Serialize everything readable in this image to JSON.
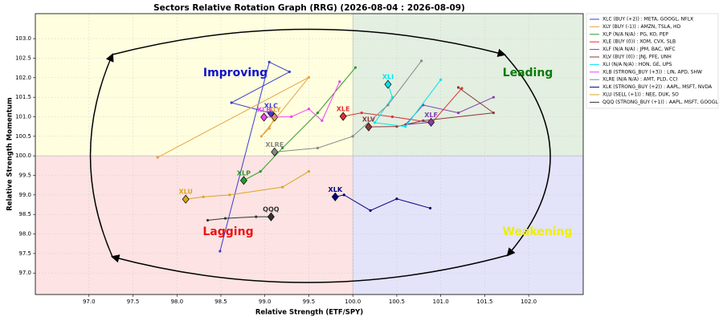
{
  "chart_data": {
    "type": "rrg",
    "title": "Sectors Relative Rotation Graph (RRG) (2026-08-04 : 2026-08-09)",
    "x_label": "Relative Strength (ETF/SPY)",
    "y_label": "Relative Strength Momentum",
    "xlim": [
      96.39,
      102.62
    ],
    "ylim": [
      96.45,
      103.64
    ],
    "center": [
      100,
      100
    ],
    "grid": true,
    "xticks": [
      {
        "value": 97,
        "label": "97.0"
      },
      {
        "value": 97.5,
        "label": "97.5"
      },
      {
        "value": 98,
        "label": "98.0"
      },
      {
        "value": 98.5,
        "label": "98.5"
      },
      {
        "value": 99,
        "label": "99.0"
      },
      {
        "value": 99.5,
        "label": "99.5"
      },
      {
        "value": 100,
        "label": "100.0"
      },
      {
        "value": 100.5,
        "label": "100.5"
      },
      {
        "value": 101,
        "label": "101.0"
      },
      {
        "value": 101.5,
        "label": "101.5"
      },
      {
        "value": 102,
        "label": "102.0"
      }
    ],
    "yticks": [
      {
        "value": 97,
        "label": "97.0"
      },
      {
        "value": 97.5,
        "label": "97.5"
      },
      {
        "value": 98,
        "label": "98.0"
      },
      {
        "value": 98.5,
        "label": "98.5"
      },
      {
        "value": 99,
        "label": "99.0"
      },
      {
        "value": 99.5,
        "label": "99.5"
      },
      {
        "value": 100,
        "label": "100.0"
      },
      {
        "value": 100.5,
        "label": "100.5"
      },
      {
        "value": 101,
        "label": "101.0"
      },
      {
        "value": 101.5,
        "label": "101.5"
      },
      {
        "value": 102,
        "label": "102.0"
      },
      {
        "value": 102.5,
        "label": "102.5"
      },
      {
        "value": 103,
        "label": "103.0"
      }
    ],
    "quadrants": [
      {
        "name": "Improving",
        "color": "#1010cc",
        "bg": "#ffffe0"
      },
      {
        "name": "Leading",
        "color": "#0a7a0a",
        "bg": "#e3efe0"
      },
      {
        "name": "Weakening",
        "color": "#eeee00",
        "bg": "#e3e3fa"
      },
      {
        "name": "Lagging",
        "color": "#ee1010",
        "bg": "#fde3e3"
      }
    ],
    "legend": "upper right",
    "series": [
      {
        "name": "XLC (BUY (+2)) : META, GOOGL, NFLX",
        "label": "XLC",
        "color": "#3c3ccc",
        "x": [
          98.49,
          99.05,
          99.28,
          98.62,
          99.07
        ],
        "y": [
          97.56,
          102.4,
          102.15,
          101.36,
          101.09
        ]
      },
      {
        "name": "XLY (BUY (-1)) : AMZN, TSLA, HD",
        "label": "XLY",
        "color": "#e8a33d",
        "x": [
          97.78,
          99.5,
          98.96,
          99.05,
          99.11
        ],
        "y": [
          99.96,
          102.01,
          100.5,
          100.7,
          100.99
        ]
      },
      {
        "name": "XLP (N/A N/A) : PG, KO, PEP",
        "label": "XLP",
        "color": "#2a9a2a",
        "x": [
          100.03,
          99.6,
          99.2,
          98.95,
          98.76
        ],
        "y": [
          102.26,
          101.1,
          100.2,
          99.6,
          99.37
        ]
      },
      {
        "name": "XLE (BUY (0)) : XOM, CVX, SLB",
        "label": "XLE",
        "color": "#e03030",
        "x": [
          101.24,
          100.9,
          100.45,
          100.1,
          99.89
        ],
        "y": [
          101.73,
          100.85,
          101.0,
          101.1,
          101.01
        ]
      },
      {
        "name": "XLF (N/A N/A) : JPM, BAC, WFC",
        "label": "XLF",
        "color": "#8040b0",
        "x": [
          101.6,
          101.2,
          100.8,
          100.6,
          100.89
        ],
        "y": [
          101.5,
          101.1,
          101.3,
          100.8,
          100.86
        ]
      },
      {
        "name": "XLV (BUY (0)) : JNJ, PFE, UNH",
        "label": "XLV",
        "color": "#8b3a3a",
        "x": [
          101.2,
          101.6,
          100.8,
          100.5,
          100.18
        ],
        "y": [
          101.75,
          101.1,
          100.9,
          100.75,
          100.74
        ]
      },
      {
        "name": "XLI (N/A N/A) : HON, GE, UPS",
        "label": "XLI",
        "color": "#00e5ee",
        "x": [
          101.0,
          100.6,
          100.25,
          100.45,
          100.4
        ],
        "y": [
          101.95,
          100.75,
          100.85,
          101.5,
          101.83
        ]
      },
      {
        "name": "XLB (STRONG_BUY (+3)) : LIN, APD, SHW",
        "label": "XLB",
        "color": "#ee44ee",
        "x": [
          99.85,
          99.65,
          99.5,
          99.3,
          98.99
        ],
        "y": [
          101.9,
          100.9,
          101.2,
          101.0,
          100.99
        ]
      },
      {
        "name": "XLRE (N/A N/A) : AMT, PLD, CCI",
        "label": "XLRE",
        "color": "#888888",
        "x": [
          100.78,
          100.4,
          100.0,
          99.6,
          99.11
        ],
        "y": [
          102.43,
          101.3,
          100.5,
          100.2,
          100.1
        ]
      },
      {
        "name": "XLK (STRONG_BUY (+2)) : AAPL, MSFT, NVDA",
        "label": "XLK",
        "color": "#000080",
        "x": [
          100.88,
          100.5,
          100.2,
          99.9,
          99.8
        ],
        "y": [
          98.66,
          98.9,
          98.6,
          99.0,
          98.95
        ]
      },
      {
        "name": "XLU (SELL (+1)) : NEE, DUK, SO",
        "label": "XLU",
        "color": "#daa520",
        "x": [
          99.5,
          99.2,
          98.6,
          98.3,
          98.1
        ],
        "y": [
          99.6,
          99.2,
          99.0,
          98.95,
          98.89
        ]
      },
      {
        "name": "QQQ (STRONG_BUY (+1)) : AAPL, MSFT, GOOGL",
        "label": "QQQ",
        "color": "#333333",
        "x": [
          98.35,
          98.55,
          98.9,
          99.07
        ],
        "y": [
          98.35,
          98.4,
          98.44,
          98.44
        ]
      }
    ]
  }
}
